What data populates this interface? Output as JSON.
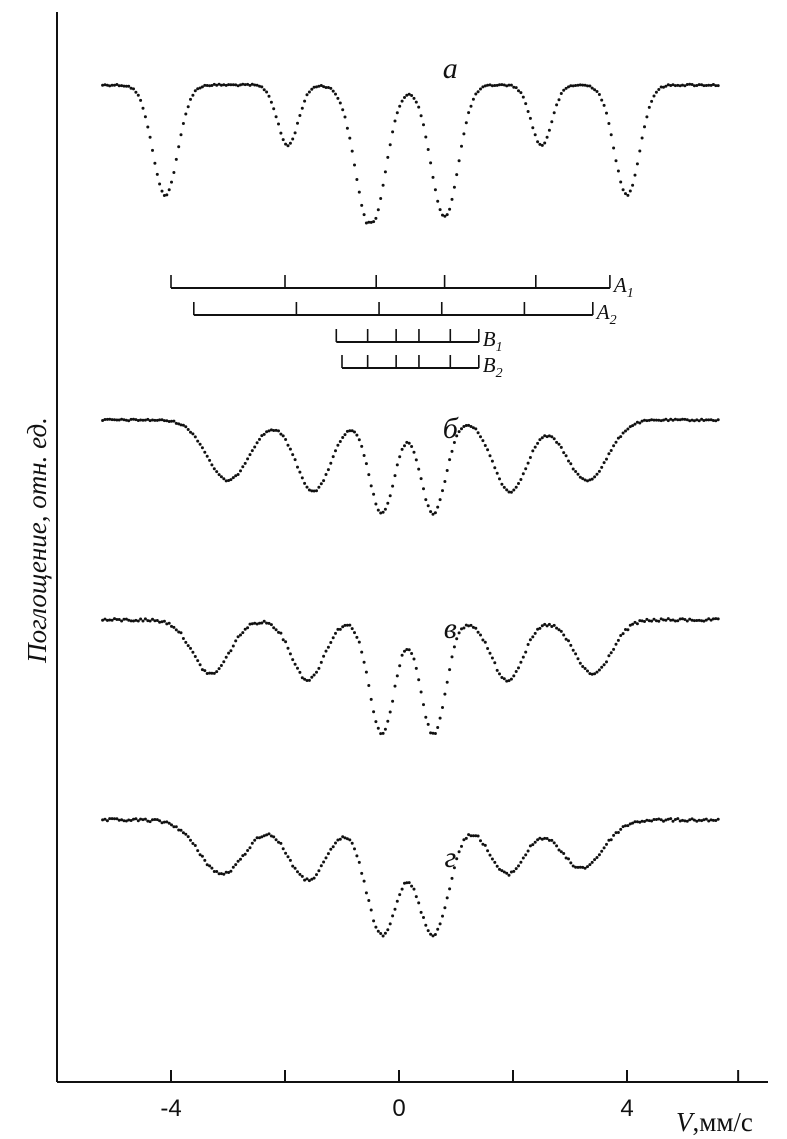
{
  "chart_data": {
    "type": "line",
    "xlabel_var": "V",
    "xlabel_unit": ",мм/с",
    "ylabel": "Поглощение, отн. ед.",
    "xlim": [
      -6,
      6
    ],
    "x_ticks": [
      -4,
      -2,
      0,
      2,
      4
    ],
    "x_tick_labels": [
      "-4",
      "",
      "0",
      "",
      "4"
    ],
    "grid": false,
    "panels": [
      {
        "label": "а",
        "baseline": 0.5,
        "noise": 0.008,
        "peaks": [
          [
            -4.1,
            1.0,
            0.22
          ],
          [
            -1.95,
            0.55,
            0.18
          ],
          [
            -0.5,
            1.3,
            0.26
          ],
          [
            0.8,
            1.2,
            0.24
          ],
          [
            2.5,
            0.55,
            0.18
          ],
          [
            4.0,
            1.0,
            0.22
          ]
        ]
      },
      {
        "label": "б",
        "baseline": 0.5,
        "noise": 0.008,
        "peaks": [
          [
            -3.0,
            0.55,
            0.36
          ],
          [
            -1.5,
            0.65,
            0.3
          ],
          [
            -0.3,
            0.85,
            0.22
          ],
          [
            0.6,
            0.85,
            0.22
          ],
          [
            1.95,
            0.65,
            0.3
          ],
          [
            3.3,
            0.55,
            0.36
          ]
        ]
      },
      {
        "label": "в",
        "baseline": 0.5,
        "noise": 0.012,
        "peaks": [
          [
            -3.3,
            0.45,
            0.32
          ],
          [
            -1.6,
            0.5,
            0.28
          ],
          [
            -0.3,
            0.95,
            0.22
          ],
          [
            0.6,
            0.95,
            0.22
          ],
          [
            1.9,
            0.5,
            0.28
          ],
          [
            3.4,
            0.45,
            0.32
          ]
        ]
      },
      {
        "label": "г",
        "baseline": 0.5,
        "noise": 0.012,
        "peaks": [
          [
            -3.1,
            0.45,
            0.4
          ],
          [
            -1.6,
            0.5,
            0.34
          ],
          [
            -0.3,
            0.95,
            0.28
          ],
          [
            0.6,
            0.95,
            0.28
          ],
          [
            1.9,
            0.45,
            0.32
          ],
          [
            3.2,
            0.4,
            0.38
          ]
        ]
      }
    ],
    "stick_diagrams": [
      {
        "name": "A",
        "sub": "1",
        "x_start": -4.0,
        "x_end": 3.7,
        "sticks": [
          -4.0,
          -2.0,
          -0.4,
          0.8,
          2.4,
          3.7
        ]
      },
      {
        "name": "A",
        "sub": "2",
        "x_start": -3.6,
        "x_end": 3.4,
        "sticks": [
          -3.6,
          -1.8,
          -0.35,
          0.75,
          2.2,
          3.4
        ]
      },
      {
        "name": "B",
        "sub": "1",
        "x_start": -1.1,
        "x_end": 1.4,
        "sticks": [
          -1.1,
          -0.55,
          -0.05,
          0.35,
          0.9,
          1.4
        ]
      },
      {
        "name": "B",
        "sub": "2",
        "x_start": -1.0,
        "x_end": 1.4,
        "sticks": [
          -1.0,
          -0.55,
          -0.05,
          0.35,
          0.9,
          1.4
        ]
      }
    ]
  }
}
